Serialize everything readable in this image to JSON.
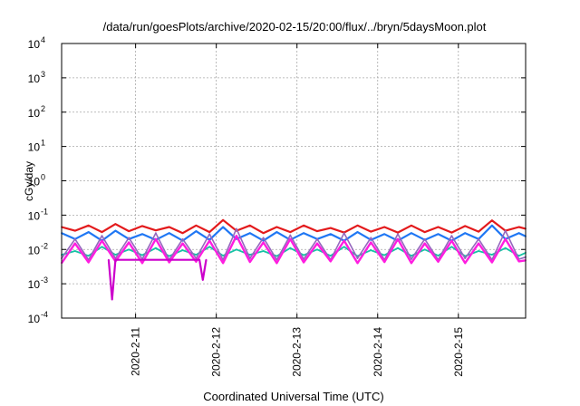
{
  "chart_data": {
    "type": "line",
    "title": "/data/run/goesPlots/archive/2020-02-15/20:00/flux/../bryn/5daysMoon.plot",
    "xlabel": "Coordinated Universal Time (UTC)",
    "ylabel": "cGy/day",
    "yscale": "log",
    "ylim": [
      0.0001,
      10000
    ],
    "xlim": [
      "2020-02-10T02:00",
      "2020-02-15T20:00"
    ],
    "grid": true,
    "legend": "none",
    "y_ticks": [
      {
        "value": 0.0001,
        "base": "10",
        "exp": "-4"
      },
      {
        "value": 0.001,
        "base": "10",
        "exp": "-3"
      },
      {
        "value": 0.01,
        "base": "10",
        "exp": "-2"
      },
      {
        "value": 0.1,
        "base": "10",
        "exp": "-1"
      },
      {
        "value": 1,
        "base": "10",
        "exp": "0"
      },
      {
        "value": 10,
        "base": "10",
        "exp": "1"
      },
      {
        "value": 100,
        "base": "10",
        "exp": "2"
      },
      {
        "value": 1000,
        "base": "10",
        "exp": "3"
      },
      {
        "value": 10000,
        "base": "10",
        "exp": "4"
      }
    ],
    "x_ticks": [
      {
        "value": "2020-02-11T00:00",
        "label": "2020-2-11"
      },
      {
        "value": "2020-02-12T00:00",
        "label": "2020-2-12"
      },
      {
        "value": "2020-02-13T00:00",
        "label": "2020-2-13"
      },
      {
        "value": "2020-02-14T00:00",
        "label": "2020-2-14"
      },
      {
        "value": "2020-02-15T00:00",
        "label": "2020-2-15"
      }
    ],
    "series": [
      {
        "color": "#e31a1c",
        "width": 2.2,
        "x": [
          "2020-02-10T02:00",
          "2020-02-10T06:00",
          "2020-02-10T10:00",
          "2020-02-10T14:00",
          "2020-02-10T18:00",
          "2020-02-10T22:00",
          "2020-02-11T02:00",
          "2020-02-11T06:00",
          "2020-02-11T10:00",
          "2020-02-11T14:00",
          "2020-02-11T18:00",
          "2020-02-11T22:00",
          "2020-02-12T02:00",
          "2020-02-12T06:00",
          "2020-02-12T10:00",
          "2020-02-12T14:00",
          "2020-02-12T18:00",
          "2020-02-12T22:00",
          "2020-02-13T02:00",
          "2020-02-13T06:00",
          "2020-02-13T10:00",
          "2020-02-13T14:00",
          "2020-02-13T18:00",
          "2020-02-13T22:00",
          "2020-02-14T02:00",
          "2020-02-14T06:00",
          "2020-02-14T10:00",
          "2020-02-14T14:00",
          "2020-02-14T18:00",
          "2020-02-14T22:00",
          "2020-02-15T02:00",
          "2020-02-15T06:00",
          "2020-02-15T10:00",
          "2020-02-15T14:00",
          "2020-02-15T18:00",
          "2020-02-15T20:00"
        ],
        "y": [
          0.045,
          0.035,
          0.05,
          0.032,
          0.055,
          0.034,
          0.048,
          0.036,
          0.045,
          0.03,
          0.05,
          0.032,
          0.072,
          0.035,
          0.05,
          0.03,
          0.045,
          0.032,
          0.05,
          0.034,
          0.042,
          0.031,
          0.05,
          0.033,
          0.045,
          0.031,
          0.05,
          0.032,
          0.045,
          0.031,
          0.048,
          0.033,
          0.07,
          0.035,
          0.045,
          0.04
        ]
      },
      {
        "color": "#1f77f4",
        "width": 2.2,
        "x": [
          "2020-02-10T02:00",
          "2020-02-10T06:00",
          "2020-02-10T10:00",
          "2020-02-10T14:00",
          "2020-02-10T18:00",
          "2020-02-10T22:00",
          "2020-02-11T02:00",
          "2020-02-11T06:00",
          "2020-02-11T10:00",
          "2020-02-11T14:00",
          "2020-02-11T18:00",
          "2020-02-11T22:00",
          "2020-02-12T02:00",
          "2020-02-12T06:00",
          "2020-02-12T10:00",
          "2020-02-12T14:00",
          "2020-02-12T18:00",
          "2020-02-12T22:00",
          "2020-02-13T02:00",
          "2020-02-13T06:00",
          "2020-02-13T10:00",
          "2020-02-13T14:00",
          "2020-02-13T18:00",
          "2020-02-13T22:00",
          "2020-02-14T02:00",
          "2020-02-14T06:00",
          "2020-02-14T10:00",
          "2020-02-14T14:00",
          "2020-02-14T18:00",
          "2020-02-14T22:00",
          "2020-02-15T02:00",
          "2020-02-15T06:00",
          "2020-02-15T10:00",
          "2020-02-15T14:00",
          "2020-02-15T18:00",
          "2020-02-15T20:00"
        ],
        "y": [
          0.03,
          0.02,
          0.032,
          0.018,
          0.035,
          0.02,
          0.028,
          0.019,
          0.03,
          0.018,
          0.034,
          0.019,
          0.045,
          0.02,
          0.03,
          0.018,
          0.032,
          0.019,
          0.03,
          0.02,
          0.028,
          0.018,
          0.032,
          0.019,
          0.028,
          0.018,
          0.03,
          0.019,
          0.028,
          0.018,
          0.03,
          0.02,
          0.05,
          0.02,
          0.03,
          0.024
        ]
      },
      {
        "color": "#17c3a4",
        "width": 1.8,
        "x": [
          "2020-02-10T02:00",
          "2020-02-10T06:00",
          "2020-02-10T10:00",
          "2020-02-10T14:00",
          "2020-02-10T18:00",
          "2020-02-10T22:00",
          "2020-02-11T02:00",
          "2020-02-11T06:00",
          "2020-02-11T10:00",
          "2020-02-11T14:00",
          "2020-02-11T18:00",
          "2020-02-11T22:00",
          "2020-02-12T02:00",
          "2020-02-12T06:00",
          "2020-02-12T10:00",
          "2020-02-12T14:00",
          "2020-02-12T18:00",
          "2020-02-12T22:00",
          "2020-02-13T02:00",
          "2020-02-13T06:00",
          "2020-02-13T10:00",
          "2020-02-13T14:00",
          "2020-02-13T18:00",
          "2020-02-13T22:00",
          "2020-02-14T02:00",
          "2020-02-14T06:00",
          "2020-02-14T10:00",
          "2020-02-14T14:00",
          "2020-02-14T18:00",
          "2020-02-14T22:00",
          "2020-02-15T02:00",
          "2020-02-15T06:00",
          "2020-02-15T10:00",
          "2020-02-15T14:00",
          "2020-02-15T18:00",
          "2020-02-15T20:00"
        ],
        "y": [
          0.007,
          0.009,
          0.0065,
          0.012,
          0.007,
          0.01,
          0.0068,
          0.011,
          0.0064,
          0.0095,
          0.007,
          0.012,
          0.0066,
          0.01,
          0.007,
          0.009,
          0.0064,
          0.011,
          0.0068,
          0.01,
          0.0065,
          0.012,
          0.0064,
          0.0095,
          0.0068,
          0.011,
          0.0065,
          0.01,
          0.0066,
          0.012,
          0.0064,
          0.009,
          0.007,
          0.011,
          0.0065,
          0.008
        ]
      },
      {
        "color": "#9467bd",
        "width": 1.6,
        "x": [
          "2020-02-10T02:00",
          "2020-02-10T06:00",
          "2020-02-10T10:00",
          "2020-02-10T14:00",
          "2020-02-10T18:00",
          "2020-02-10T22:00",
          "2020-02-11T02:00",
          "2020-02-11T06:00",
          "2020-02-11T10:00",
          "2020-02-11T14:00",
          "2020-02-11T18:00",
          "2020-02-11T22:00",
          "2020-02-12T02:00",
          "2020-02-12T06:00",
          "2020-02-12T10:00",
          "2020-02-12T14:00",
          "2020-02-12T18:00",
          "2020-02-12T22:00",
          "2020-02-13T02:00",
          "2020-02-13T06:00",
          "2020-02-13T10:00",
          "2020-02-13T14:00",
          "2020-02-13T18:00",
          "2020-02-13T22:00",
          "2020-02-14T02:00",
          "2020-02-14T06:00",
          "2020-02-14T10:00",
          "2020-02-14T14:00",
          "2020-02-14T18:00",
          "2020-02-14T22:00",
          "2020-02-15T02:00",
          "2020-02-15T06:00",
          "2020-02-15T10:00",
          "2020-02-15T14:00",
          "2020-02-15T18:00",
          "2020-02-15T20:00"
        ],
        "y": [
          0.0055,
          0.02,
          0.005,
          0.025,
          0.0055,
          0.022,
          0.0052,
          0.03,
          0.005,
          0.02,
          0.0055,
          0.028,
          0.005,
          0.04,
          0.0055,
          0.022,
          0.005,
          0.026,
          0.0052,
          0.02,
          0.005,
          0.03,
          0.0055,
          0.022,
          0.005,
          0.028,
          0.0052,
          0.02,
          0.005,
          0.025,
          0.0055,
          0.02,
          0.005,
          0.035,
          0.0052,
          0.006
        ]
      },
      {
        "color": "#ff1ee0",
        "width": 2.4,
        "x": [
          "2020-02-10T02:00",
          "2020-02-10T06:00",
          "2020-02-10T10:00",
          "2020-02-10T14:00",
          "2020-02-10T18:00",
          "2020-02-10T22:00",
          "2020-02-11T02:00",
          "2020-02-11T06:00",
          "2020-02-11T10:00",
          "2020-02-11T14:00",
          "2020-02-11T18:00",
          "2020-02-11T22:00",
          "2020-02-12T02:00",
          "2020-02-12T06:00",
          "2020-02-12T10:00",
          "2020-02-12T14:00",
          "2020-02-12T18:00",
          "2020-02-12T22:00",
          "2020-02-13T02:00",
          "2020-02-13T06:00",
          "2020-02-13T10:00",
          "2020-02-13T14:00",
          "2020-02-13T18:00",
          "2020-02-13T22:00",
          "2020-02-14T02:00",
          "2020-02-14T06:00",
          "2020-02-14T10:00",
          "2020-02-14T14:00",
          "2020-02-14T18:00",
          "2020-02-14T22:00",
          "2020-02-15T02:00",
          "2020-02-15T06:00",
          "2020-02-15T10:00",
          "2020-02-15T14:00",
          "2020-02-15T18:00",
          "2020-02-15T20:00"
        ],
        "y": [
          0.004,
          0.015,
          0.0042,
          0.018,
          0.0045,
          0.016,
          0.004,
          0.02,
          0.0042,
          0.015,
          0.0044,
          0.018,
          0.004,
          0.025,
          0.0043,
          0.016,
          0.004,
          0.02,
          0.0042,
          0.015,
          0.0045,
          0.018,
          0.004,
          0.016,
          0.0043,
          0.02,
          0.004,
          0.015,
          0.0044,
          0.018,
          0.004,
          0.015,
          0.0042,
          0.02,
          0.0045,
          0.0048
        ]
      },
      {
        "color": "#cc00cc",
        "width": 2.2,
        "x": [
          "2020-02-10T16:00",
          "2020-02-10T17:00",
          "2020-02-10T18:00",
          "2020-02-11T19:00",
          "2020-02-11T20:00",
          "2020-02-11T21:00"
        ],
        "y": [
          0.005,
          0.00035,
          0.005,
          0.005,
          0.0013,
          0.005
        ]
      }
    ]
  }
}
